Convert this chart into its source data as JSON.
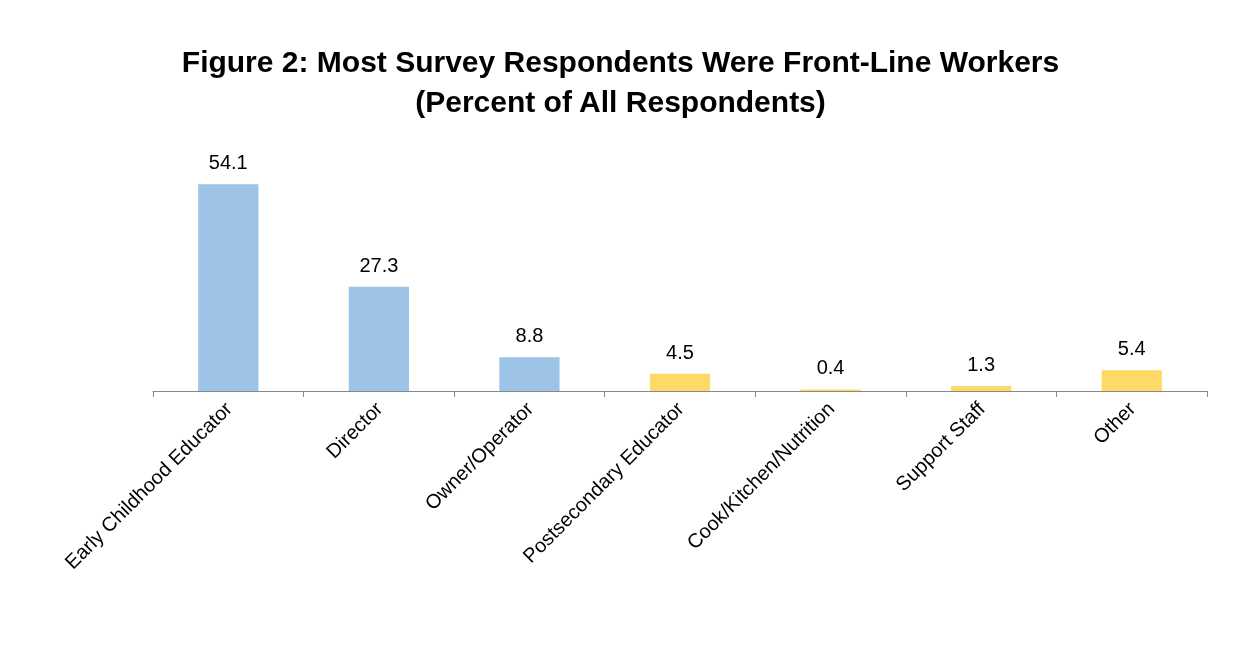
{
  "chart_data": {
    "type": "bar",
    "title": "Figure 2: Most Survey Respondents Were Front-Line Workers\n(Percent of All Respondents)",
    "categories": [
      "Early Childhood Educator",
      "Director",
      "Owner/Operator",
      "Postsecondary Educator",
      "Cook/Kitchen/Nutrition",
      "Support Staff",
      "Other"
    ],
    "values": [
      54.1,
      27.3,
      8.8,
      4.5,
      0.4,
      1.3,
      5.4
    ],
    "colors": [
      "#9dc3e6",
      "#9dc3e6",
      "#9dc3e6",
      "#ffd966",
      "#ffd966",
      "#ffd966",
      "#ffd966"
    ],
    "data_labels": true
  }
}
